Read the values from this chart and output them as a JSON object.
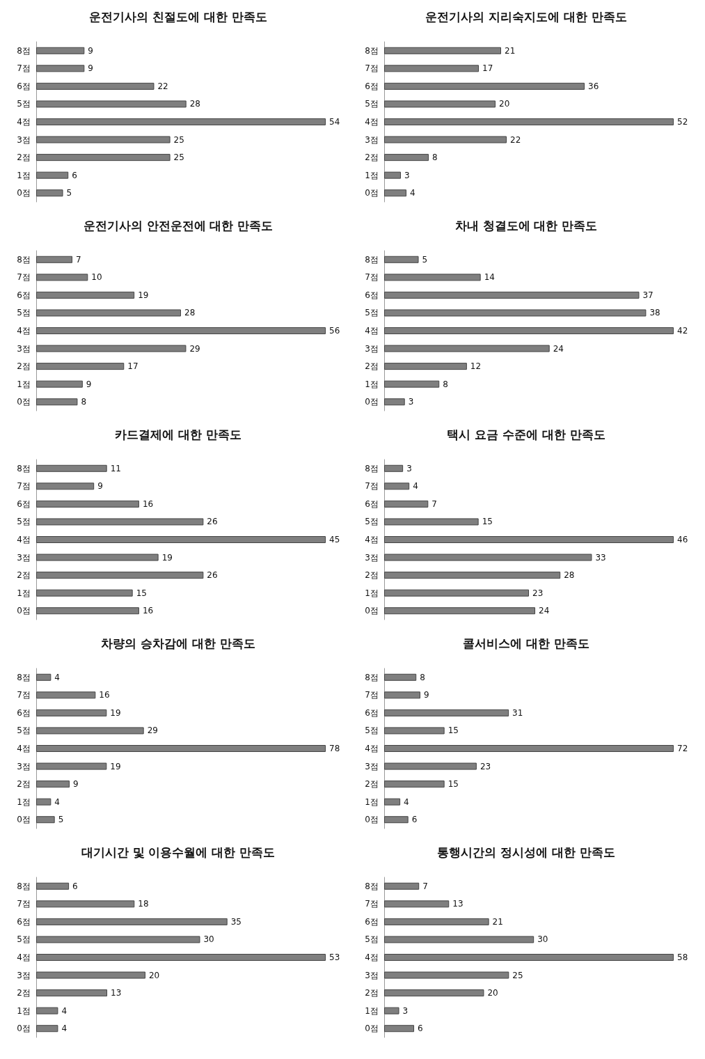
{
  "chart_data": [
    {
      "type": "bar",
      "orientation": "horizontal",
      "title": "운전기사의 친절도에 대한 만족도",
      "categories": [
        "8점",
        "7점",
        "6점",
        "5점",
        "4점",
        "3점",
        "2점",
        "1점",
        "0점"
      ],
      "values": [
        9,
        9,
        22,
        28,
        54,
        25,
        25,
        6,
        5
      ],
      "color": "#7f7f7f",
      "data_labels": true
    },
    {
      "type": "bar",
      "orientation": "horizontal",
      "title": "운전기사의 지리숙지도에 대한 만족도",
      "categories": [
        "8점",
        "7점",
        "6점",
        "5점",
        "4점",
        "3점",
        "2점",
        "1점",
        "0점"
      ],
      "values": [
        21,
        17,
        36,
        20,
        52,
        22,
        8,
        3,
        4
      ],
      "color": "#7f7f7f",
      "data_labels": true
    },
    {
      "type": "bar",
      "orientation": "horizontal",
      "title": "운전기사의 안전운전에 대한 만족도",
      "categories": [
        "8점",
        "7점",
        "6점",
        "5점",
        "4점",
        "3점",
        "2점",
        "1점",
        "0점"
      ],
      "values": [
        7,
        10,
        19,
        28,
        56,
        29,
        17,
        9,
        8
      ],
      "color": "#7f7f7f",
      "data_labels": true
    },
    {
      "type": "bar",
      "orientation": "horizontal",
      "title": "차내 청결도에 대한 만족도",
      "categories": [
        "8점",
        "7점",
        "6점",
        "5점",
        "4점",
        "3점",
        "2점",
        "1점",
        "0점"
      ],
      "values": [
        5,
        14,
        37,
        38,
        42,
        24,
        12,
        8,
        3
      ],
      "color": "#7f7f7f",
      "data_labels": true
    },
    {
      "type": "bar",
      "orientation": "horizontal",
      "title": "카드결제에 대한 만족도",
      "categories": [
        "8점",
        "7점",
        "6점",
        "5점",
        "4점",
        "3점",
        "2점",
        "1점",
        "0점"
      ],
      "values": [
        11,
        9,
        16,
        26,
        45,
        19,
        26,
        15,
        16
      ],
      "color": "#7f7f7f",
      "data_labels": true
    },
    {
      "type": "bar",
      "orientation": "horizontal",
      "title": "택시 요금 수준에 대한 만족도",
      "categories": [
        "8점",
        "7점",
        "6점",
        "5점",
        "4점",
        "3점",
        "2점",
        "1점",
        "0점"
      ],
      "values": [
        3,
        4,
        7,
        15,
        46,
        33,
        28,
        23,
        24
      ],
      "color": "#7f7f7f",
      "data_labels": true
    },
    {
      "type": "bar",
      "orientation": "horizontal",
      "title": "차량의 승차감에 대한 만족도",
      "categories": [
        "8점",
        "7점",
        "6점",
        "5점",
        "4점",
        "3점",
        "2점",
        "1점",
        "0점"
      ],
      "values": [
        4,
        16,
        19,
        29,
        78,
        19,
        9,
        4,
        5
      ],
      "color": "#7f7f7f",
      "data_labels": true
    },
    {
      "type": "bar",
      "orientation": "horizontal",
      "title": "콜서비스에 대한 만족도",
      "categories": [
        "8점",
        "7점",
        "6점",
        "5점",
        "4점",
        "3점",
        "2점",
        "1점",
        "0점"
      ],
      "values": [
        8,
        9,
        31,
        15,
        72,
        23,
        15,
        4,
        6
      ],
      "color": "#7f7f7f",
      "data_labels": true
    },
    {
      "type": "bar",
      "orientation": "horizontal",
      "title": "대기시간 및 이용수월에 대한 만족도",
      "categories": [
        "8점",
        "7점",
        "6점",
        "5점",
        "4점",
        "3점",
        "2점",
        "1점",
        "0점"
      ],
      "values": [
        6,
        18,
        35,
        30,
        53,
        20,
        13,
        4,
        4
      ],
      "color": "#7f7f7f",
      "data_labels": true
    },
    {
      "type": "bar",
      "orientation": "horizontal",
      "title": "통행시간의 정시성에 대한 만족도",
      "categories": [
        "8점",
        "7점",
        "6점",
        "5점",
        "4점",
        "3점",
        "2점",
        "1점",
        "0점"
      ],
      "values": [
        7,
        13,
        21,
        30,
        58,
        25,
        20,
        3,
        6
      ],
      "color": "#7f7f7f",
      "data_labels": true
    }
  ]
}
